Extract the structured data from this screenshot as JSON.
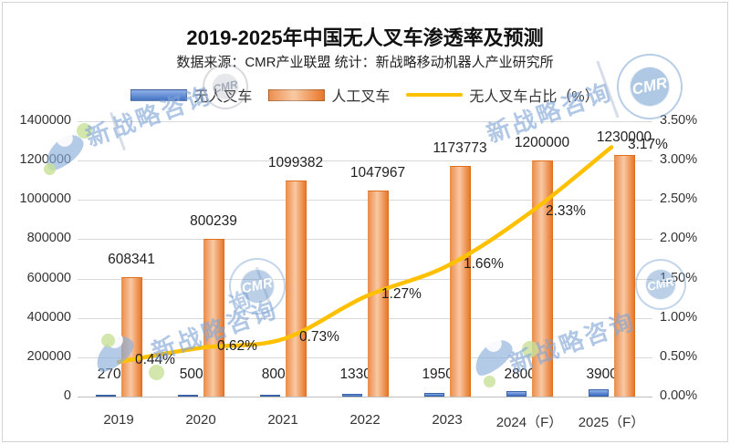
{
  "title": "2019-2025年中国无人叉车渗透率及预测",
  "subtitle": "数据来源：CMR产业联盟 统计：新战略移动机器人产业研究所",
  "legend": [
    {
      "label": "无人叉车",
      "swatch": "bar",
      "color": "#4472c4"
    },
    {
      "label": "人工叉车",
      "swatch": "bar",
      "color": "#ed7d31"
    },
    {
      "label": "无人叉车占比（%）",
      "swatch": "line",
      "color": "#ffc000"
    }
  ],
  "chart_data": {
    "type": "combo-bar-line",
    "categories": [
      "2019",
      "2020",
      "2021",
      "2022",
      "2023",
      "2024（F）",
      "2025（F）"
    ],
    "series": [
      {
        "name": "无人叉车",
        "chart": "bar",
        "axis": "left",
        "color": "#4472c4",
        "values": [
          2700,
          5000,
          8000,
          13300,
          19500,
          28000,
          39000
        ],
        "labels": [
          "2700",
          "5000",
          "8000",
          "13300",
          "19500",
          "28000",
          "39000"
        ]
      },
      {
        "name": "人工叉车",
        "chart": "bar",
        "axis": "left",
        "color": "#ed7d31",
        "values": [
          608341,
          800239,
          1099382,
          1047967,
          1173773,
          1200000,
          1230000
        ],
        "labels": [
          "608341",
          "800239",
          "1099382",
          "1047967",
          "1173773",
          "1200000",
          "1230000"
        ]
      },
      {
        "name": "无人叉车占比（%）",
        "chart": "line",
        "axis": "right",
        "color": "#ffc000",
        "values": [
          0.44,
          0.62,
          0.73,
          1.27,
          1.66,
          2.33,
          3.17
        ],
        "labels": [
          "0.44%",
          "0.62%",
          "0.73%",
          "1.27%",
          "1.66%",
          "2.33%",
          "3.17%"
        ]
      }
    ],
    "left_axis": {
      "min": 0,
      "max": 1400000,
      "ticks": [
        "0",
        "200000",
        "400000",
        "600000",
        "800000",
        "1000000",
        "1200000",
        "1400000"
      ]
    },
    "right_axis": {
      "min": 0,
      "max": 3.5,
      "ticks": [
        "0.00%",
        "0.50%",
        "1.00%",
        "1.50%",
        "2.00%",
        "2.50%",
        "3.00%",
        "3.50%"
      ]
    },
    "grid": true,
    "legend_position": "top"
  },
  "watermark": {
    "text": "新战略咨询",
    "partial_text": "询",
    "stamp_text": "CMR"
  }
}
